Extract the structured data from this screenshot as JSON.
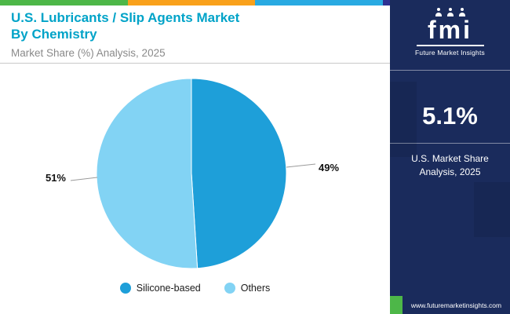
{
  "top_strip": {
    "colors": [
      "#4db748",
      "#f9a11b",
      "#29aae2",
      "#2e3192"
    ]
  },
  "header": {
    "title_line1": "U.S. Lubricants / Slip Agents Market",
    "title_line2": "By Chemistry",
    "subtitle": "Market Share (%) Analysis, 2025",
    "title_color": "#00a3c8",
    "subtitle_color": "#8a8a8a"
  },
  "chart_data": {
    "type": "pie",
    "title": "U.S. Lubricants / Slip Agents Market By Chemistry",
    "subtitle": "Market Share (%) Analysis, 2025",
    "unit": "% market share",
    "start_angle_deg": -90,
    "direction": "clockwise",
    "legend_position": "bottom",
    "slices": [
      {
        "label": "Silicone-based",
        "value": 49,
        "data_label": "49%",
        "color": "#1e9fd9"
      },
      {
        "label": "Others",
        "value": 51,
        "data_label": "51%",
        "color": "#82d3f4"
      }
    ]
  },
  "side_panel": {
    "logo": {
      "text": "fmi",
      "subtext": "Future Market Insights"
    },
    "stat_value": "5.1%",
    "stat_caption_line1": "U.S. Market Share",
    "stat_caption_line2": "Analysis, 2025",
    "website": "www.futuremarketinsights.com",
    "colors": {
      "bg": "#1a2b5c",
      "accent": "#4db748",
      "divider": "rgba(255,255,255,0.45)"
    }
  }
}
